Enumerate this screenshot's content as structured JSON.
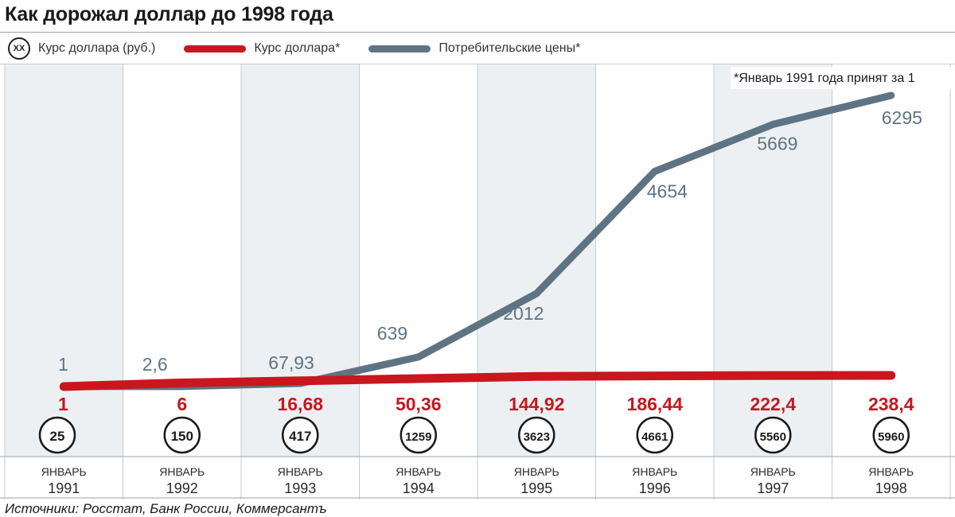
{
  "title": "Как дорожал доллар до 1998 года",
  "legend": {
    "circle_symbol": "XX",
    "circle_label": "Курс доллара (руб.)",
    "red_label": "Курс доллара*",
    "gray_label": "Потребительские цены*"
  },
  "colors": {
    "red": "#c8171e",
    "gray": "#5e7482",
    "shade": "#edf0f3"
  },
  "footnote": "*Январь 1991 года принят за 1",
  "sources": "Источники: Росстат, Банк России, Коммерсантъ",
  "chart_data": {
    "type": "line",
    "categories": [
      "ЯНВАРЬ 1991",
      "ЯНВАРЬ 1992",
      "ЯНВАРЬ 1993",
      "ЯНВАРЬ 1994",
      "ЯНВАРЬ 1995",
      "ЯНВАРЬ 1996",
      "ЯНВАРЬ 1997",
      "ЯНВАРЬ 1998"
    ],
    "month_label": "ЯНВАРЬ",
    "years": [
      "1991",
      "1992",
      "1993",
      "1994",
      "1995",
      "1996",
      "1997",
      "1998"
    ],
    "series": [
      {
        "name": "Потребительские цены*",
        "color": "#5e7482",
        "values": [
          1,
          2.6,
          67.93,
          639,
          2012,
          4654,
          5669,
          6295
        ],
        "labels": [
          "1",
          "2,6",
          "67,93",
          "639",
          "2012",
          "4654",
          "5669",
          "6295"
        ]
      },
      {
        "name": "Курс доллара*",
        "color": "#c8171e",
        "values": [
          1,
          6,
          16.68,
          50.36,
          144.92,
          186.44,
          222.4,
          238.4
        ],
        "labels": [
          "1",
          "6",
          "16,68",
          "50,36",
          "144,92",
          "186,44",
          "222,4",
          "238,4"
        ]
      }
    ],
    "dollar_rate_rub": {
      "name": "Курс доллара (руб.)",
      "values": [
        "25",
        "150",
        "417",
        "1259",
        "3623",
        "4661",
        "5560",
        "5960"
      ]
    },
    "ylim": [
      0,
      6295
    ],
    "shaded_columns": [
      0,
      2,
      4,
      6
    ]
  }
}
